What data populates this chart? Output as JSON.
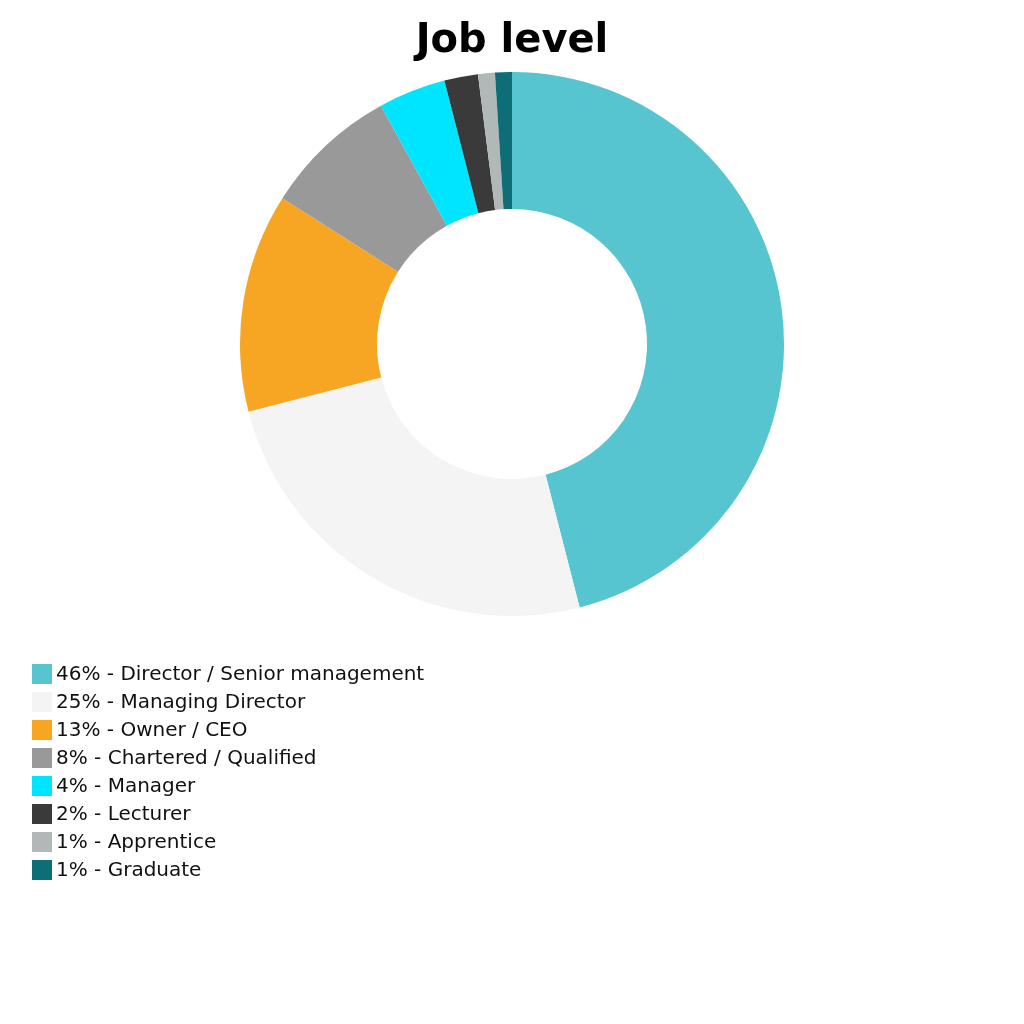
{
  "chart_data": {
    "type": "donut",
    "title": "Job level",
    "categories": [
      "46% - Director / Senior management",
      "25% - Managing Director",
      "13% - Owner / CEO",
      "8% - Chartered / Qualified",
      "4% - Manager",
      "2% - Lecturer",
      "1% - Apprentice",
      "1% - Graduate"
    ],
    "values": [
      46,
      25,
      13,
      8,
      4,
      2,
      1,
      1
    ],
    "colors": [
      "#56c5d0",
      "#f4f4f4",
      "#f6a623",
      "#999999",
      "#00e5ff",
      "#3a3a3a",
      "#b0b8b8",
      "#0e6e78"
    ],
    "legend": "bottom left"
  }
}
